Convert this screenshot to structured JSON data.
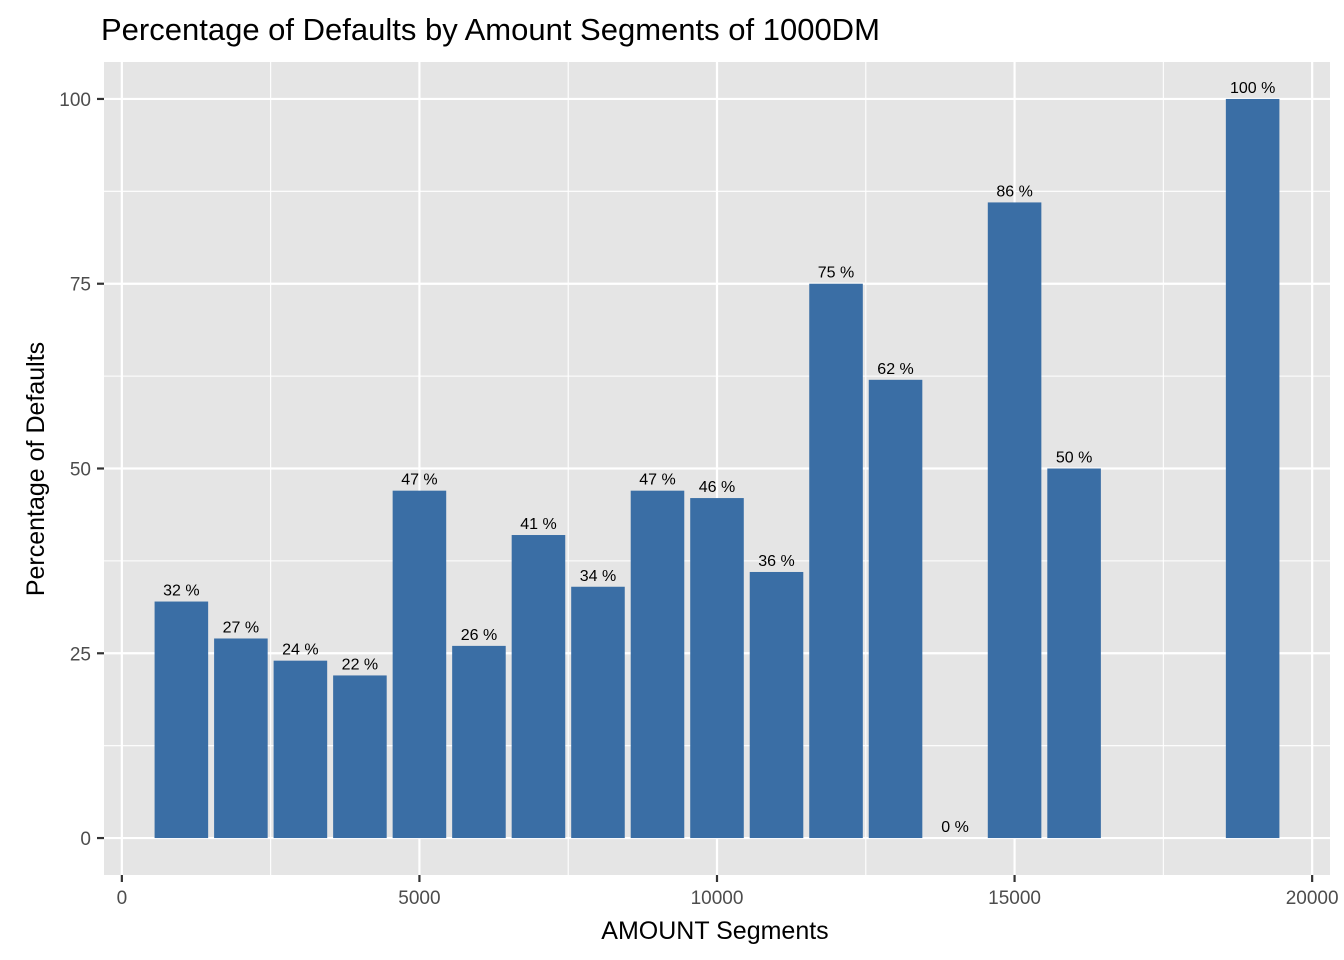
{
  "chart_data": {
    "type": "bar",
    "title": "Percentage of Defaults by Amount Segments of 1000DM",
    "xlabel": "AMOUNT Segments",
    "ylabel": "Percentage of Defaults",
    "x": [
      1000,
      2000,
      3000,
      4000,
      5000,
      6000,
      7000,
      8000,
      9000,
      10000,
      11000,
      12000,
      13000,
      14000,
      15000,
      16000,
      19000
    ],
    "values": [
      32,
      27,
      24,
      22,
      47,
      26,
      41,
      34,
      47,
      46,
      36,
      75,
      62,
      0,
      86,
      50,
      100
    ],
    "data_labels": [
      "32 %",
      "27 %",
      "24 %",
      "22 %",
      "47 %",
      "26 %",
      "41 %",
      "34 %",
      "47 %",
      "46 %",
      "36 %",
      "75 %",
      "62 %",
      "0 %",
      "86 %",
      "50 %",
      "100 %"
    ],
    "xlim": [
      -300,
      20300
    ],
    "ylim": [
      -5,
      105
    ],
    "x_ticks": [
      0,
      5000,
      10000,
      15000,
      20000
    ],
    "x_tick_labels": [
      "0",
      "5000",
      "10000",
      "15000",
      "20000"
    ],
    "y_ticks": [
      0,
      25,
      50,
      75,
      100
    ],
    "y_tick_labels": [
      "0",
      "25",
      "50",
      "75",
      "100"
    ],
    "bar_width": 900,
    "grid": true,
    "bar_color": "#3A6EA5",
    "panel_color": "#E5E5E5"
  }
}
